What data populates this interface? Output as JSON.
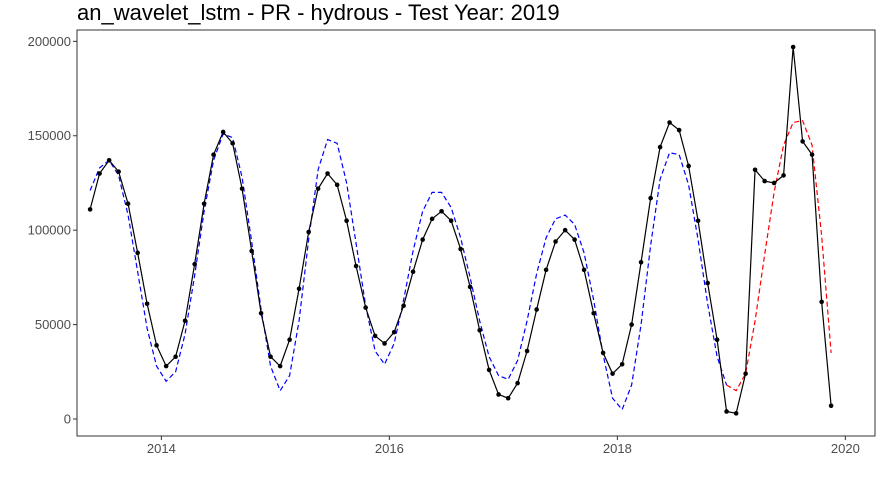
{
  "chart_data": {
    "type": "line",
    "title": "an_wavelet_lstm - PR - hydrous - Test Year: 2019",
    "xlabel": "",
    "ylabel": "",
    "xlim": [
      2013.26,
      2020.26
    ],
    "ylim": [
      -9000,
      206000
    ],
    "x_ticks": [
      2014,
      2016,
      2018,
      2020
    ],
    "x_tick_labels": [
      "2014",
      "2016",
      "2018",
      "2020"
    ],
    "y_ticks": [
      0,
      50000,
      100000,
      150000,
      200000
    ],
    "y_tick_labels": [
      "0",
      "50000",
      "100000",
      "150000",
      "200000"
    ],
    "grid": false,
    "legend": "none",
    "series": [
      {
        "role": "actual",
        "color": "#000000",
        "dash": "solid",
        "markers": true,
        "x": [
          2013.375,
          2013.458,
          2013.542,
          2013.625,
          2013.708,
          2013.792,
          2013.875,
          2013.958,
          2014.042,
          2014.125,
          2014.208,
          2014.292,
          2014.375,
          2014.458,
          2014.542,
          2014.625,
          2014.708,
          2014.792,
          2014.875,
          2014.958,
          2015.042,
          2015.125,
          2015.208,
          2015.292,
          2015.375,
          2015.458,
          2015.542,
          2015.625,
          2015.708,
          2015.792,
          2015.875,
          2015.958,
          2016.042,
          2016.125,
          2016.208,
          2016.292,
          2016.375,
          2016.458,
          2016.542,
          2016.625,
          2016.708,
          2016.792,
          2016.875,
          2016.958,
          2017.042,
          2017.125,
          2017.208,
          2017.292,
          2017.375,
          2017.458,
          2017.542,
          2017.625,
          2017.708,
          2017.792,
          2017.875,
          2017.958,
          2018.042,
          2018.125,
          2018.208,
          2018.292,
          2018.375,
          2018.458,
          2018.542,
          2018.625,
          2018.708,
          2018.792,
          2018.875,
          2018.958,
          2019.042,
          2019.125,
          2019.208,
          2019.292,
          2019.375,
          2019.458,
          2019.542,
          2019.625,
          2019.708,
          2019.792,
          2019.875
        ],
        "y": [
          111000,
          130000,
          137000,
          131000,
          114000,
          88000,
          61000,
          39000,
          28000,
          33000,
          52000,
          82000,
          114000,
          140000,
          152000,
          146000,
          122000,
          89000,
          56000,
          33000,
          28000,
          42000,
          69000,
          99000,
          122000,
          130000,
          124000,
          105000,
          81000,
          59000,
          44000,
          40000,
          46000,
          60000,
          78000,
          95000,
          106000,
          110000,
          105000,
          90000,
          70000,
          47000,
          26000,
          13000,
          11000,
          19000,
          36000,
          58000,
          79000,
          94000,
          100000,
          95000,
          79000,
          56000,
          35000,
          24000,
          29000,
          50000,
          83000,
          117000,
          144000,
          157000,
          153000,
          134000,
          105000,
          72000,
          42000,
          4000,
          3000,
          24000,
          132000,
          126000,
          125000,
          129000,
          197000,
          147000,
          140000,
          62000,
          7000
        ]
      },
      {
        "role": "fitted",
        "color": "#0000ff",
        "dash": "dashed",
        "markers": false,
        "x": [
          2013.375,
          2013.458,
          2013.542,
          2013.625,
          2013.708,
          2013.792,
          2013.875,
          2013.958,
          2014.042,
          2014.125,
          2014.208,
          2014.292,
          2014.375,
          2014.458,
          2014.542,
          2014.625,
          2014.708,
          2014.792,
          2014.875,
          2014.958,
          2015.042,
          2015.125,
          2015.208,
          2015.292,
          2015.375,
          2015.458,
          2015.542,
          2015.625,
          2015.708,
          2015.792,
          2015.875,
          2015.958,
          2016.042,
          2016.125,
          2016.208,
          2016.292,
          2016.375,
          2016.458,
          2016.542,
          2016.625,
          2016.708,
          2016.792,
          2016.875,
          2016.958,
          2017.042,
          2017.125,
          2017.208,
          2017.292,
          2017.375,
          2017.458,
          2017.542,
          2017.625,
          2017.708,
          2017.792,
          2017.875,
          2017.958,
          2018.042,
          2018.125,
          2018.208,
          2018.292,
          2018.375,
          2018.458,
          2018.542,
          2018.625,
          2018.708,
          2018.792,
          2018.875,
          2018.958
        ],
        "y": [
          121000,
          133000,
          137000,
          129000,
          108000,
          78000,
          48000,
          28000,
          20000,
          25000,
          45000,
          76000,
          110000,
          137000,
          151000,
          149000,
          128000,
          94000,
          58000,
          28000,
          15000,
          23000,
          52000,
          95000,
          132000,
          148000,
          146000,
          125000,
          93000,
          60000,
          36000,
          29000,
          40000,
          63000,
          89000,
          110000,
          120000,
          120000,
          112000,
          96000,
          75000,
          52000,
          33000,
          23000,
          21000,
          31000,
          52000,
          77000,
          96000,
          106000,
          108000,
          103000,
          88000,
          63000,
          34000,
          11000,
          5000,
          18000,
          50000,
          92000,
          127000,
          141000,
          140000,
          124000,
          95000,
          61000,
          33000,
          18000
        ]
      },
      {
        "role": "forecast",
        "color": "#ff0000",
        "dash": "dashed",
        "markers": false,
        "x": [
          2018.958,
          2019.042,
          2019.125,
          2019.208,
          2019.292,
          2019.375,
          2019.458,
          2019.542,
          2019.625,
          2019.708,
          2019.792,
          2019.875
        ],
        "y": [
          18000,
          15000,
          24000,
          52000,
          87000,
          120000,
          145000,
          157000,
          158000,
          145000,
          97000,
          35000
        ]
      }
    ]
  }
}
